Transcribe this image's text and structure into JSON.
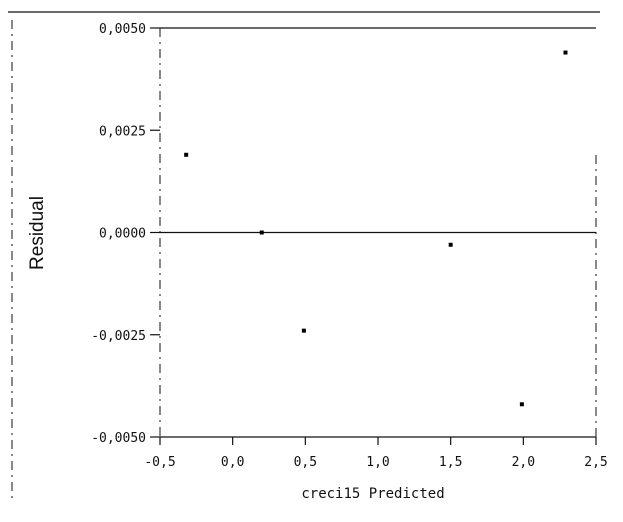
{
  "chart_data": {
    "type": "scatter",
    "title": "",
    "xlabel": "creci15 Predicted",
    "ylabel": "Residual",
    "xlim": [
      -0.5,
      2.5
    ],
    "ylim": [
      -0.005,
      0.005
    ],
    "x_ticks": [
      "-0,5",
      "0,0",
      "0,5",
      "1,0",
      "1,5",
      "2,0",
      "2,5"
    ],
    "y_ticks": [
      "0,0050",
      "0,0025",
      "0,0000",
      "-0,0025",
      "-0,0050"
    ],
    "reference_line_y": 0,
    "grid": false,
    "points": [
      {
        "x": -0.32,
        "y": 0.0019
      },
      {
        "x": 0.2,
        "y": 0.0
      },
      {
        "x": 0.49,
        "y": -0.0024
      },
      {
        "x": 1.5,
        "y": -0.0003
      },
      {
        "x": 1.99,
        "y": -0.0042
      },
      {
        "x": 2.29,
        "y": 0.0044
      }
    ]
  }
}
